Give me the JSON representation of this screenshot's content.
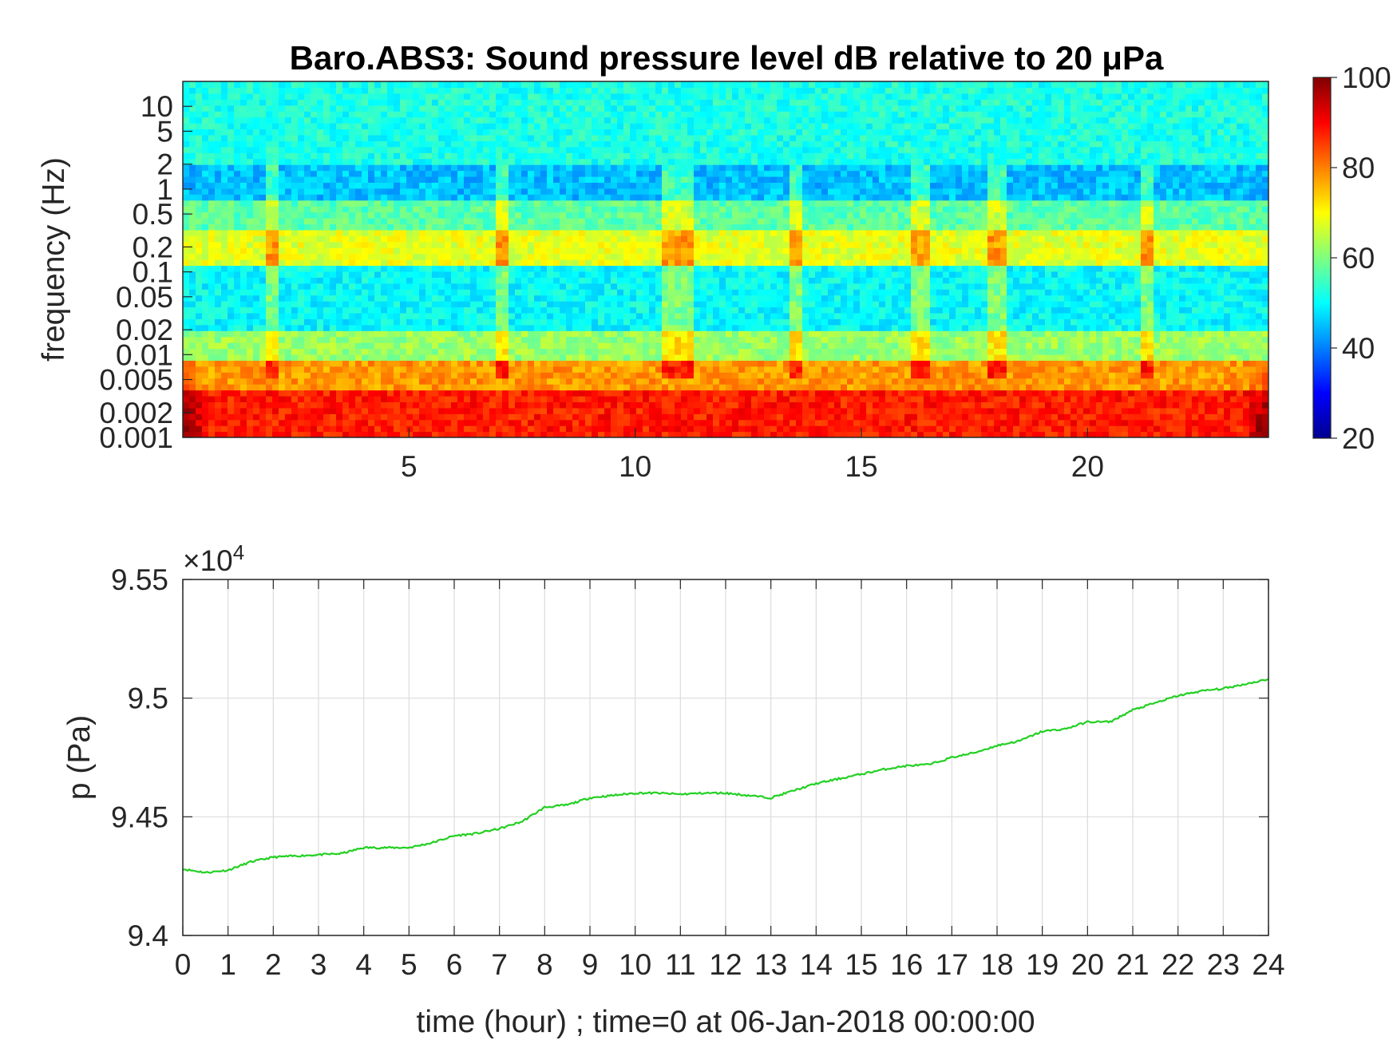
{
  "chart_data": [
    {
      "type": "heatmap",
      "title": "Baro.ABS3: Sound pressure level dB relative to 20 μPa",
      "xlabel": "",
      "ylabel": "frequency (Hz)",
      "x_ticks": [
        5,
        10,
        15,
        20
      ],
      "y_ticks": [
        "10",
        "5",
        "2",
        "1",
        "0.5",
        "0.2",
        "0.1",
        "0.05",
        "0.02",
        "0.01",
        "0.005",
        "0.002",
        "0.001"
      ],
      "y_scale": "log",
      "xlim": [
        0,
        24
      ],
      "ylim": [
        0.001,
        20
      ],
      "colorbar": {
        "min": 20,
        "max": 100,
        "ticks": [
          "20",
          "40",
          "60",
          "80",
          "100"
        ],
        "colormap": "jet"
      },
      "bands": [
        {
          "freq_range": [
            2,
            20
          ],
          "level_db": 52
        },
        {
          "freq_range": [
            0.7,
            2
          ],
          "level_db": 45
        },
        {
          "freq_range": [
            0.3,
            0.7
          ],
          "level_db": 57
        },
        {
          "freq_range": [
            0.12,
            0.3
          ],
          "level_db": 68
        },
        {
          "freq_range": [
            0.02,
            0.12
          ],
          "level_db": 50
        },
        {
          "freq_range": [
            0.008,
            0.02
          ],
          "level_db": 62
        },
        {
          "freq_range": [
            0.004,
            0.008
          ],
          "level_db": 78
        },
        {
          "freq_range": [
            0.001,
            0.004
          ],
          "level_db": 88
        }
      ],
      "transients_hours": [
        2.0,
        7.0,
        10.8,
        11.2,
        13.5,
        16.3,
        18.0,
        21.3
      ]
    },
    {
      "type": "line",
      "title": "",
      "xlabel": "time (hour) ; time=0 at 06-Jan-2018 00:00:00",
      "ylabel": "p (Pa)",
      "y_exponent_label": "×10",
      "y_exponent_power": "4",
      "x_ticks": [
        "0",
        "1",
        "2",
        "3",
        "4",
        "5",
        "6",
        "7",
        "8",
        "9",
        "10",
        "11",
        "12",
        "13",
        "14",
        "15",
        "16",
        "17",
        "18",
        "19",
        "20",
        "21",
        "22",
        "23",
        "24"
      ],
      "y_ticks": [
        "9.4",
        "9.45",
        "9.5",
        "9.55"
      ],
      "xlim": [
        0,
        24
      ],
      "ylim": [
        94000,
        95500
      ],
      "grid": true,
      "series": [
        {
          "color": "#22d022",
          "x": [
            0,
            0.5,
            1,
            1.5,
            2,
            2.5,
            3,
            3.5,
            4,
            4.5,
            5,
            5.5,
            6,
            6.5,
            7,
            7.5,
            8,
            8.5,
            9,
            9.5,
            10,
            10.5,
            11,
            11.5,
            12,
            12.5,
            13,
            13.5,
            14,
            14.5,
            15,
            15.5,
            16,
            16.5,
            17,
            17.5,
            18,
            18.5,
            19,
            19.5,
            20,
            20.5,
            21,
            21.5,
            22,
            22.5,
            23,
            23.5,
            24
          ],
          "y": [
            94280,
            94265,
            94275,
            94310,
            94330,
            94335,
            94340,
            94345,
            94370,
            94370,
            94370,
            94390,
            94420,
            94430,
            94450,
            94480,
            94540,
            94550,
            94580,
            94590,
            94600,
            94600,
            94595,
            94600,
            94600,
            94590,
            94580,
            94610,
            94640,
            94660,
            94680,
            94700,
            94715,
            94720,
            94750,
            94770,
            94800,
            94820,
            94860,
            94870,
            94900,
            94900,
            94950,
            94980,
            95010,
            95030,
            95040,
            95060,
            95080
          ]
        }
      ]
    }
  ]
}
